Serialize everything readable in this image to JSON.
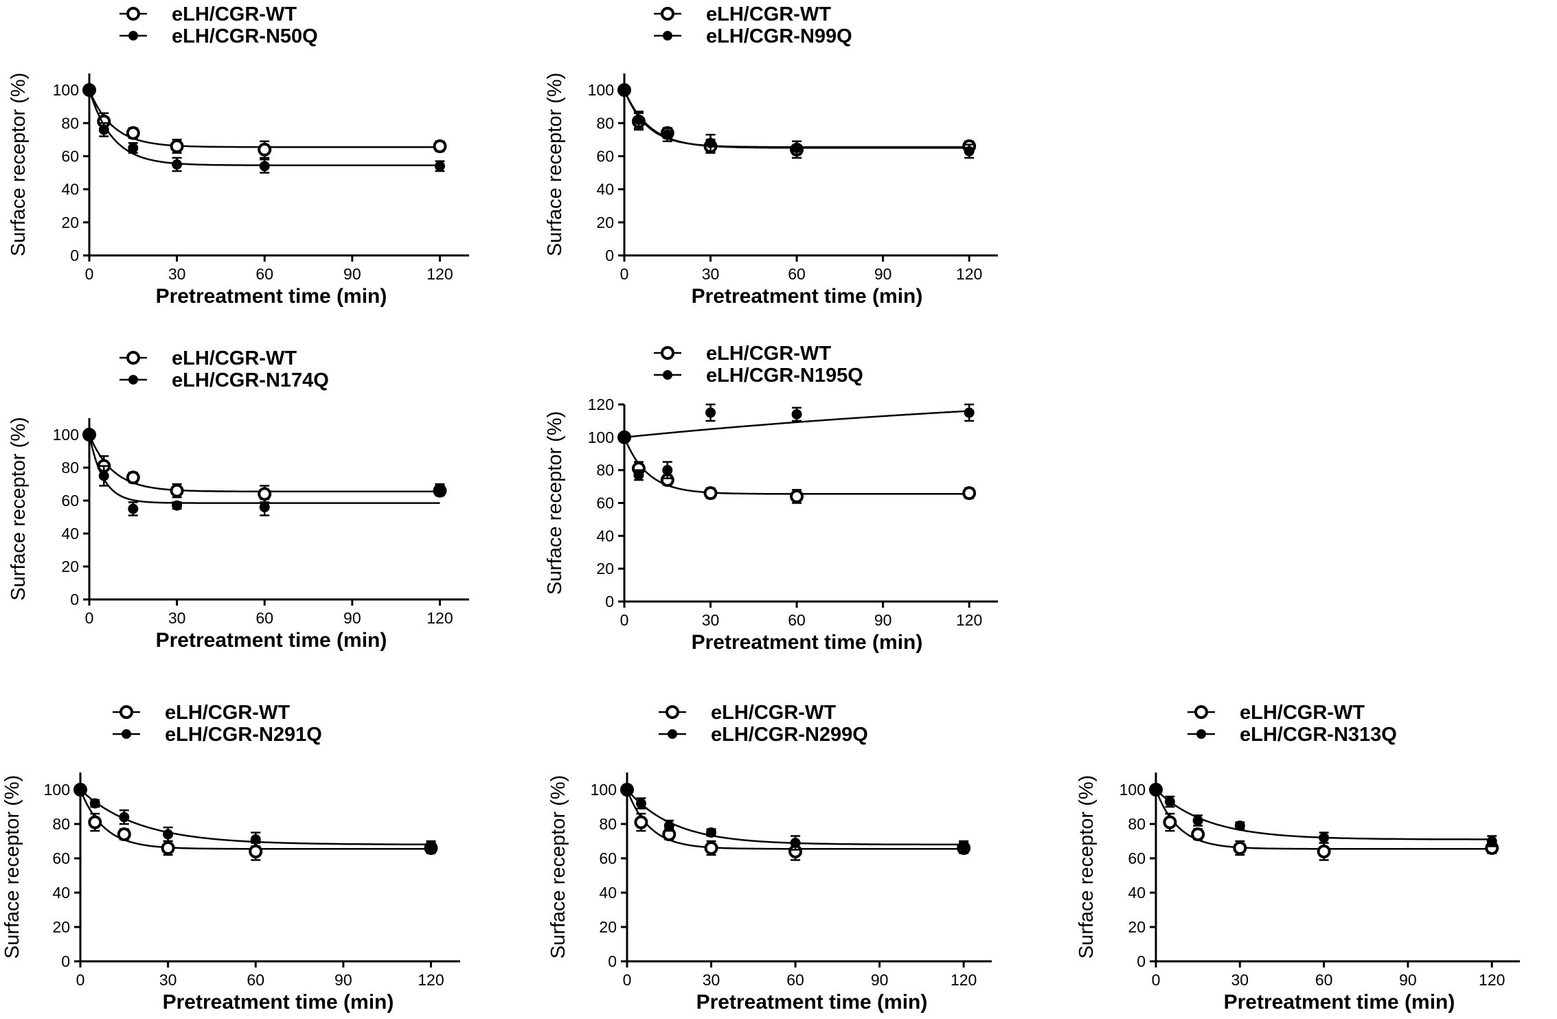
{
  "chart_data": [
    {
      "type": "scatter",
      "xlabel": "Pretreatment time (min)",
      "ylabel": "Surface receptor (%)",
      "xlim": [
        0,
        130
      ],
      "ylim": [
        0,
        110
      ],
      "xticks": [
        0,
        30,
        60,
        90,
        120
      ],
      "yticks": [
        0,
        20,
        40,
        60,
        80,
        100
      ],
      "legend_position": "top-left",
      "series": [
        {
          "name": "eLH/CGR-WT",
          "marker": "open-circle",
          "x": [
            0,
            5,
            15,
            30,
            60,
            120
          ],
          "values": [
            100,
            81,
            74,
            66,
            64,
            66
          ],
          "err": [
            0,
            5,
            3,
            4,
            5,
            3
          ]
        },
        {
          "name": "eLH/CGR-N50Q",
          "marker": "filled-circle",
          "x": [
            0,
            5,
            15,
            30,
            60,
            120
          ],
          "values": [
            100,
            76,
            65,
            55,
            54,
            54
          ],
          "err": [
            0,
            4,
            3,
            4,
            4,
            3
          ]
        }
      ]
    },
    {
      "type": "scatter",
      "xlabel": "Pretreatment time (min)",
      "ylabel": "Surface receptor (%)",
      "xlim": [
        0,
        130
      ],
      "ylim": [
        0,
        110
      ],
      "xticks": [
        0,
        30,
        60,
        90,
        120
      ],
      "yticks": [
        0,
        20,
        40,
        60,
        80,
        100
      ],
      "legend_position": "top-left",
      "series": [
        {
          "name": "eLH/CGR-WT",
          "marker": "open-circle",
          "x": [
            0,
            5,
            15,
            30,
            60,
            120
          ],
          "values": [
            100,
            81,
            74,
            66,
            64,
            66
          ],
          "err": [
            0,
            5,
            3,
            4,
            5,
            3
          ]
        },
        {
          "name": "eLH/CGR-N99Q",
          "marker": "filled-circle",
          "x": [
            0,
            5,
            15,
            30,
            60,
            120
          ],
          "values": [
            100,
            82,
            73,
            68,
            65,
            63
          ],
          "err": [
            0,
            5,
            4,
            5,
            4,
            4
          ]
        }
      ]
    },
    {
      "type": "scatter",
      "xlabel": "Pretreatment time (min)",
      "ylabel": "Surface receptor (%)",
      "xlim": [
        0,
        130
      ],
      "ylim": [
        0,
        110
      ],
      "xticks": [
        0,
        30,
        60,
        90,
        120
      ],
      "yticks": [
        0,
        20,
        40,
        60,
        80,
        100
      ],
      "legend_position": "top-left",
      "series": [
        {
          "name": "eLH/CGR-WT",
          "marker": "open-circle",
          "x": [
            0,
            5,
            15,
            30,
            60,
            120
          ],
          "values": [
            100,
            81,
            74,
            66,
            64,
            66
          ],
          "err": [
            0,
            6,
            3,
            4,
            5,
            3
          ]
        },
        {
          "name": "eLH/CGR-N174Q",
          "marker": "filled-circle",
          "x": [
            0,
            5,
            15,
            30,
            60,
            120
          ],
          "values": [
            100,
            75,
            55,
            57,
            56,
            67
          ],
          "err": [
            0,
            6,
            4,
            2,
            5,
            3
          ]
        }
      ]
    },
    {
      "type": "scatter",
      "xlabel": "Pretreatment time (min)",
      "ylabel": "Surface receptor (%)",
      "xlim": [
        0,
        130
      ],
      "ylim": [
        0,
        120
      ],
      "xticks": [
        0,
        30,
        60,
        90,
        120
      ],
      "yticks": [
        0,
        20,
        40,
        60,
        80,
        100,
        120
      ],
      "legend_position": "top-left",
      "series": [
        {
          "name": "eLH/CGR-WT",
          "marker": "open-circle",
          "x": [
            0,
            5,
            15,
            30,
            60,
            120
          ],
          "values": [
            100,
            81,
            74,
            66,
            64,
            66
          ],
          "err": [
            0,
            4,
            3,
            3,
            4,
            3
          ]
        },
        {
          "name": "eLH/CGR-N195Q",
          "marker": "filled-circle",
          "x": [
            0,
            5,
            15,
            30,
            60,
            120
          ],
          "values": [
            100,
            77,
            80,
            115,
            114,
            115
          ],
          "err": [
            0,
            3,
            5,
            5,
            4,
            5
          ]
        }
      ]
    },
    {
      "type": "scatter",
      "xlabel": "Pretreatment time (min)",
      "ylabel": "Surface receptor (%)",
      "xlim": [
        0,
        130
      ],
      "ylim": [
        0,
        110
      ],
      "xticks": [
        0,
        30,
        60,
        90,
        120
      ],
      "yticks": [
        0,
        20,
        40,
        60,
        80,
        100
      ],
      "legend_position": "top-left",
      "series": [
        {
          "name": "eLH/CGR-WT",
          "marker": "open-circle",
          "x": [
            0,
            5,
            15,
            30,
            60,
            120
          ],
          "values": [
            100,
            81,
            74,
            66,
            64,
            66
          ],
          "err": [
            0,
            5,
            3,
            4,
            5,
            3
          ]
        },
        {
          "name": "eLH/CGR-N291Q",
          "marker": "filled-circle",
          "x": [
            0,
            5,
            15,
            30,
            60,
            120
          ],
          "values": [
            100,
            92,
            84,
            74,
            71,
            67
          ],
          "err": [
            0,
            2,
            4,
            4,
            4,
            3
          ]
        }
      ]
    },
    {
      "type": "scatter",
      "xlabel": "Pretreatment time (min)",
      "ylabel": "Surface receptor (%)",
      "xlim": [
        0,
        130
      ],
      "ylim": [
        0,
        110
      ],
      "xticks": [
        0,
        30,
        60,
        90,
        120
      ],
      "yticks": [
        0,
        20,
        40,
        60,
        80,
        100
      ],
      "legend_position": "top-left",
      "series": [
        {
          "name": "eLH/CGR-WT",
          "marker": "open-circle",
          "x": [
            0,
            5,
            15,
            30,
            60,
            120
          ],
          "values": [
            100,
            81,
            74,
            66,
            64,
            66
          ],
          "err": [
            0,
            5,
            3,
            4,
            5,
            3
          ]
        },
        {
          "name": "eLH/CGR-N299Q",
          "marker": "filled-circle",
          "x": [
            0,
            5,
            15,
            30,
            60,
            120
          ],
          "values": [
            100,
            92,
            79,
            75,
            69,
            67
          ],
          "err": [
            0,
            3,
            3,
            2,
            4,
            3
          ]
        }
      ]
    },
    {
      "type": "scatter",
      "xlabel": "Pretreatment time (min)",
      "ylabel": "Surface receptor (%)",
      "xlim": [
        0,
        130
      ],
      "ylim": [
        0,
        110
      ],
      "xticks": [
        0,
        30,
        60,
        90,
        120
      ],
      "yticks": [
        0,
        20,
        40,
        60,
        80,
        100
      ],
      "legend_position": "top-left",
      "series": [
        {
          "name": "eLH/CGR-WT",
          "marker": "open-circle",
          "x": [
            0,
            5,
            15,
            30,
            60,
            120
          ],
          "values": [
            100,
            81,
            74,
            66,
            64,
            66
          ],
          "err": [
            0,
            5,
            3,
            4,
            5,
            3
          ]
        },
        {
          "name": "eLH/CGR-N313Q",
          "marker": "filled-circle",
          "x": [
            0,
            5,
            15,
            30,
            60,
            120
          ],
          "values": [
            100,
            93,
            82,
            79,
            72,
            70
          ],
          "err": [
            0,
            3,
            3,
            2,
            3,
            3
          ]
        }
      ]
    }
  ]
}
